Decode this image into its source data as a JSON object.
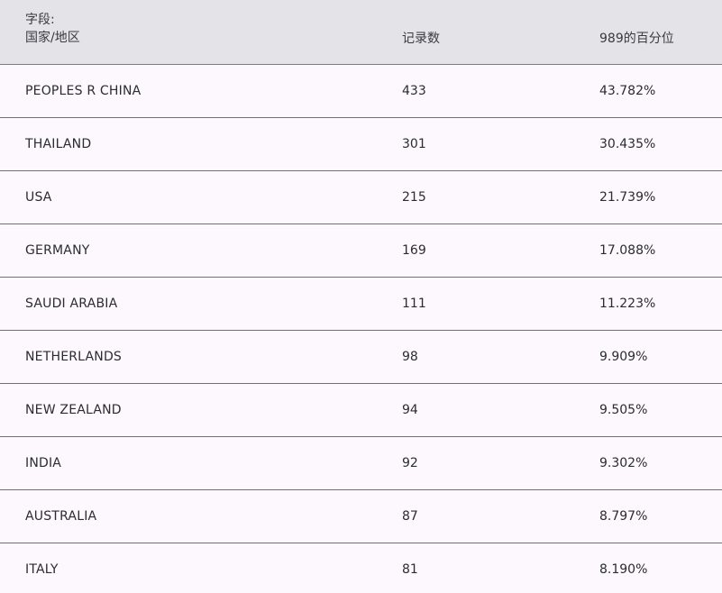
{
  "table": {
    "header": {
      "field_label": "字段:",
      "col1": "国家/地区",
      "col2": "记录数",
      "col3": "989的百分位"
    },
    "rows": [
      {
        "country": "PEOPLES R CHINA",
        "count": "433",
        "pct": "43.782%"
      },
      {
        "country": "THAILAND",
        "count": "301",
        "pct": "30.435%"
      },
      {
        "country": "USA",
        "count": "215",
        "pct": "21.739%"
      },
      {
        "country": "GERMANY",
        "count": "169",
        "pct": "17.088%"
      },
      {
        "country": "SAUDI ARABIA",
        "count": "111",
        "pct": "11.223%"
      },
      {
        "country": "NETHERLANDS",
        "count": "98",
        "pct": "9.909%"
      },
      {
        "country": "NEW ZEALAND",
        "count": "94",
        "pct": "9.505%"
      },
      {
        "country": "INDIA",
        "count": "92",
        "pct": "9.302%"
      },
      {
        "country": "AUSTRALIA",
        "count": "87",
        "pct": "8.797%"
      },
      {
        "country": "ITALY",
        "count": "81",
        "pct": "8.190%"
      }
    ]
  }
}
